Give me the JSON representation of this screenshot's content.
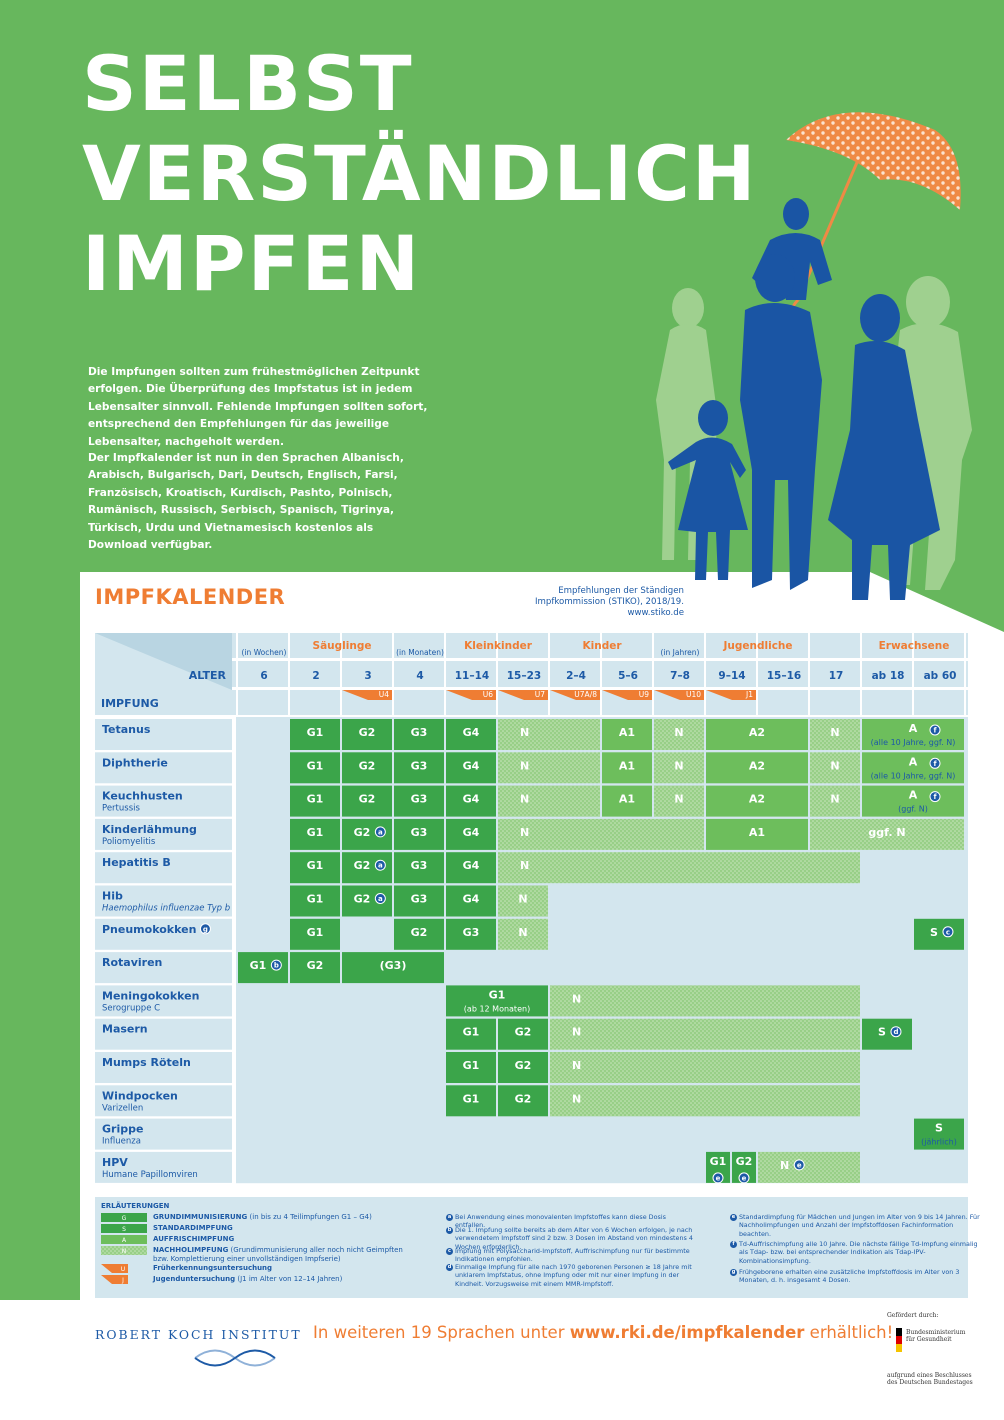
{
  "header": {
    "title": [
      "SELBST",
      "VERSTÄNDLICH",
      "IMPFEN"
    ],
    "intro": [
      "Die Impfungen sollten zum frühestmöglichen Zeitpunkt erfolgen. Die Überprüfung des Impfstatus ist in jedem Lebensalter sinnvoll. Fehlende Impfungen sollten sofort, entsprechend den Empfehlungen für das jeweilige Lebensalter, nachgeholt werden.",
      "Der Impfkalender ist nun in den Sprachen Albanisch, Arabisch, Bulgarisch, Dari, Deutsch, Englisch, Farsi, Französisch, Kroatisch, Kurdisch, Pashto, Polnisch, Rumänisch, Russisch, Serbisch, Spanisch, Tigrinya, Türkisch, Urdu und Vietnamesisch kostenlos als Download verfügbar."
    ]
  },
  "calendar": {
    "title": "IMPFKALENDER",
    "source": [
      "Empfehlungen der Ständigen",
      "Impfkommission (STIKO), 2018/19.",
      "www.stiko.de"
    ],
    "age_label": "ALTER",
    "vaccine_label": "IMPFUNG",
    "groups": [
      {
        "label": "Säuglinge",
        "col": 1,
        "span": 2
      },
      {
        "label": "Kleinkinder",
        "col": 4,
        "span": 2
      },
      {
        "label": "Kinder",
        "col": 6,
        "span": 2
      },
      {
        "label": "Jugendliche",
        "col": 9,
        "span": 2
      },
      {
        "label": "Erwachsene",
        "col": 12,
        "span": 2
      }
    ],
    "units": [
      {
        "label": "(in Wochen)",
        "col": 0
      },
      {
        "label": "(in Monaten)",
        "col": 3
      },
      {
        "label": "(in Jahren)",
        "col": 8
      }
    ],
    "ages": [
      "6",
      "2",
      "3",
      "4",
      "11–14",
      "15–23",
      "2–4",
      "5–6",
      "7–8",
      "9–14",
      "15–16",
      "17",
      "ab 18",
      "ab 60"
    ],
    "exams": [
      {
        "label": "U4",
        "col": 2
      },
      {
        "label": "U6",
        "col": 4
      },
      {
        "label": "U7",
        "col": 5
      },
      {
        "label": "U7A/8",
        "col": 6
      },
      {
        "label": "U9",
        "col": 7
      },
      {
        "label": "U10",
        "col": 8
      },
      {
        "label": "J1",
        "col": 9
      }
    ],
    "rows": [
      {
        "name": "Tetanus",
        "cells": [
          {
            "col": 1,
            "span": 1,
            "kind": "G",
            "label": "G1"
          },
          {
            "col": 2,
            "span": 1,
            "kind": "G",
            "label": "G2"
          },
          {
            "col": 3,
            "span": 1,
            "kind": "G",
            "label": "G3"
          },
          {
            "col": 4,
            "span": 1,
            "kind": "G",
            "label": "G4"
          },
          {
            "col": 5,
            "span": 2,
            "kind": "N",
            "label": "N"
          },
          {
            "col": 7,
            "span": 1,
            "kind": "A",
            "label": "A1"
          },
          {
            "col": 8,
            "span": 1,
            "kind": "N",
            "label": "N"
          },
          {
            "col": 9,
            "span": 2,
            "kind": "A",
            "label": "A2"
          },
          {
            "col": 11,
            "span": 1,
            "kind": "N",
            "label": "N"
          },
          {
            "col": 12,
            "span": 2,
            "kind": "A",
            "label": "A",
            "note": "f",
            "sub": "(alle 10 Jahre, ggf. N)"
          }
        ]
      },
      {
        "name": "Diphtherie",
        "cells": [
          {
            "col": 1,
            "span": 1,
            "kind": "G",
            "label": "G1"
          },
          {
            "col": 2,
            "span": 1,
            "kind": "G",
            "label": "G2"
          },
          {
            "col": 3,
            "span": 1,
            "kind": "G",
            "label": "G3"
          },
          {
            "col": 4,
            "span": 1,
            "kind": "G",
            "label": "G4"
          },
          {
            "col": 5,
            "span": 2,
            "kind": "N",
            "label": "N"
          },
          {
            "col": 7,
            "span": 1,
            "kind": "A",
            "label": "A1"
          },
          {
            "col": 8,
            "span": 1,
            "kind": "N",
            "label": "N"
          },
          {
            "col": 9,
            "span": 2,
            "kind": "A",
            "label": "A2"
          },
          {
            "col": 11,
            "span": 1,
            "kind": "N",
            "label": "N"
          },
          {
            "col": 12,
            "span": 2,
            "kind": "A",
            "label": "A",
            "note": "f",
            "sub": "(alle 10 Jahre, ggf. N)"
          }
        ]
      },
      {
        "name": "Keuchhusten",
        "subtitle": "Pertussis",
        "cells": [
          {
            "col": 1,
            "span": 1,
            "kind": "G",
            "label": "G1"
          },
          {
            "col": 2,
            "span": 1,
            "kind": "G",
            "label": "G2"
          },
          {
            "col": 3,
            "span": 1,
            "kind": "G",
            "label": "G3"
          },
          {
            "col": 4,
            "span": 1,
            "kind": "G",
            "label": "G4"
          },
          {
            "col": 5,
            "span": 2,
            "kind": "N",
            "label": "N"
          },
          {
            "col": 7,
            "span": 1,
            "kind": "A",
            "label": "A1"
          },
          {
            "col": 8,
            "span": 1,
            "kind": "N",
            "label": "N"
          },
          {
            "col": 9,
            "span": 2,
            "kind": "A",
            "label": "A2"
          },
          {
            "col": 11,
            "span": 1,
            "kind": "N",
            "label": "N"
          },
          {
            "col": 12,
            "span": 2,
            "kind": "A",
            "label": "A",
            "note": "f",
            "sub": "(ggf. N)"
          }
        ]
      },
      {
        "name": "Kinderlähmung",
        "subtitle": "Poliomyelitis",
        "cells": [
          {
            "col": 1,
            "span": 1,
            "kind": "G",
            "label": "G1"
          },
          {
            "col": 2,
            "span": 1,
            "kind": "G",
            "label": "G2",
            "note": "a"
          },
          {
            "col": 3,
            "span": 1,
            "kind": "G",
            "label": "G3"
          },
          {
            "col": 4,
            "span": 1,
            "kind": "G",
            "label": "G4"
          },
          {
            "col": 5,
            "span": 4,
            "kind": "N",
            "label": "N"
          },
          {
            "col": 9,
            "span": 2,
            "kind": "A",
            "label": "A1"
          },
          {
            "col": 11,
            "span": 3,
            "kind": "N",
            "label": "ggf. N"
          }
        ]
      },
      {
        "name": "Hepatitis B",
        "cells": [
          {
            "col": 1,
            "span": 1,
            "kind": "G",
            "label": "G1"
          },
          {
            "col": 2,
            "span": 1,
            "kind": "G",
            "label": "G2",
            "note": "a"
          },
          {
            "col": 3,
            "span": 1,
            "kind": "G",
            "label": "G3"
          },
          {
            "col": 4,
            "span": 1,
            "kind": "G",
            "label": "G4"
          },
          {
            "col": 5,
            "span": 7,
            "kind": "N",
            "label": "N"
          }
        ]
      },
      {
        "name": "Hib",
        "subtitle": "Haemophilus influenzae Typ b",
        "cells": [
          {
            "col": 1,
            "span": 1,
            "kind": "G",
            "label": "G1"
          },
          {
            "col": 2,
            "span": 1,
            "kind": "G",
            "label": "G2",
            "note": "a"
          },
          {
            "col": 3,
            "span": 1,
            "kind": "G",
            "label": "G3"
          },
          {
            "col": 4,
            "span": 1,
            "kind": "G",
            "label": "G4"
          },
          {
            "col": 5,
            "span": 1,
            "kind": "N",
            "label": "N"
          }
        ]
      },
      {
        "name": "Pneumokokken",
        "note": "g",
        "cells": [
          {
            "col": 1,
            "span": 1,
            "kind": "G",
            "label": "G1"
          },
          {
            "col": 3,
            "span": 1,
            "kind": "G",
            "label": "G2"
          },
          {
            "col": 4,
            "span": 1,
            "kind": "G",
            "label": "G3"
          },
          {
            "col": 5,
            "span": 1,
            "kind": "N",
            "label": "N"
          },
          {
            "col": 13,
            "span": 1,
            "kind": "S",
            "label": "S",
            "note": "c"
          }
        ]
      },
      {
        "name": "Rotaviren",
        "cells": [
          {
            "col": 0,
            "span": 1,
            "kind": "G",
            "label": "G1",
            "note": "b"
          },
          {
            "col": 1,
            "span": 1,
            "kind": "G",
            "label": "G2"
          },
          {
            "col": 2,
            "span": 2,
            "kind": "G",
            "label": "(G3)"
          }
        ]
      },
      {
        "name": "Meningokokken",
        "subtitle": "Serogruppe C",
        "cells": [
          {
            "col": 4,
            "span": 2,
            "kind": "G",
            "label": "G1",
            "sub": "(ab 12 Monaten)"
          },
          {
            "col": 6,
            "span": 6,
            "kind": "N",
            "label": "N"
          }
        ]
      },
      {
        "name": "Masern",
        "cells": [
          {
            "col": 4,
            "span": 1,
            "kind": "G",
            "label": "G1"
          },
          {
            "col": 5,
            "span": 1,
            "kind": "G",
            "label": "G2"
          },
          {
            "col": 6,
            "span": 6,
            "kind": "N",
            "label": "N"
          },
          {
            "col": 12,
            "span": 1,
            "kind": "S",
            "label": "S",
            "note": "d"
          }
        ]
      },
      {
        "name": "Mumps  Röteln",
        "cells": [
          {
            "col": 4,
            "span": 1,
            "kind": "G",
            "label": "G1"
          },
          {
            "col": 5,
            "span": 1,
            "kind": "G",
            "label": "G2"
          },
          {
            "col": 6,
            "span": 6,
            "kind": "N",
            "label": "N"
          }
        ]
      },
      {
        "name": "Windpocken",
        "subtitle": "Varizellen",
        "cells": [
          {
            "col": 4,
            "span": 1,
            "kind": "G",
            "label": "G1"
          },
          {
            "col": 5,
            "span": 1,
            "kind": "G",
            "label": "G2"
          },
          {
            "col": 6,
            "span": 6,
            "kind": "N",
            "label": "N"
          }
        ]
      },
      {
        "name": "Grippe",
        "subtitle": "Influenza",
        "cells": [
          {
            "col": 13,
            "span": 1,
            "kind": "S",
            "label": "S",
            "sub": "(jährlich)"
          }
        ]
      },
      {
        "name": "HPV",
        "subtitle": "Humane Papillomviren",
        "cells": [
          {
            "col": 9,
            "span": 0.5,
            "kind": "G",
            "label": "G1",
            "note": "e"
          },
          {
            "col": 9.5,
            "span": 0.5,
            "kind": "G",
            "label": "G2",
            "note": "e"
          },
          {
            "col": 10,
            "span": 2,
            "kind": "N",
            "label": "N",
            "note": "e"
          }
        ]
      }
    ]
  },
  "legend": {
    "title": "ERLÄUTERUNGEN",
    "items": [
      {
        "code": "G",
        "kind": "G",
        "label": "GRUNDIMMUNISIERUNG",
        "text": "(in bis zu 4 Teilimpfungen G1 – G4)"
      },
      {
        "code": "S",
        "kind": "S",
        "label": "STANDARDIMPFUNG"
      },
      {
        "code": "A",
        "kind": "A",
        "label": "AUFFRISCHIMPFUNG"
      },
      {
        "code": "N",
        "kind": "N",
        "label": "NACHHOLIMPFUNG",
        "text": "(Grundimmunisierung aller noch nicht Geimpften bzw. Komplettierung einer unvollständigen Impfserie)"
      }
    ],
    "exam_codes": [
      "U",
      "J"
    ],
    "exam_label": "Früherkennungsuntersuchung",
    "youth_label": "Jugenduntersuchung",
    "youth_text": "(J1 im Alter von 12–14 Jahren)"
  },
  "footnotes": [
    {
      "letter": "a",
      "text": "Bei Anwendung eines monovalenten Impfstoffes kann diese Dosis entfallen."
    },
    {
      "letter": "b",
      "text": "Die 1. Impfung sollte bereits ab dem Alter von 6 Wochen erfolgen, je nach verwendetem Impfstoff sind 2 bzw. 3 Dosen im Abstand von mindestens 4 Wochen erforderlich."
    },
    {
      "letter": "c",
      "text": "Impfung mit Polysaccharid-Impfstoff, Auffrischimpfung nur für bestimmte Indikationen empfohlen."
    },
    {
      "letter": "d",
      "text": "Einmalige Impfung für alle nach 1970 geborenen Personen ≥ 18 Jahre mit unklarem Impfstatus, ohne Impfung oder mit nur einer Impfung in der Kindheit. Vorzugsweise mit einem MMR-Impfstoff."
    },
    {
      "letter": "e",
      "text": "Standardimpfung für Mädchen und Jungen im Alter von 9 bis 14 Jahren. Für Nachholimpfungen und Anzahl der Impfstoffdosen Fachinformation beachten."
    },
    {
      "letter": "f",
      "text": "Td-Auffrischimpfung alle 10 Jahre. Die nächste fällige Td-Impfung einmalig als Tdap- bzw. bei entsprechender Indikation als Tdap-IPV-Kombinationsimpfung."
    },
    {
      "letter": "g",
      "text": "Frühgeborene erhalten eine zusätzliche Impfstoffdosis im Alter von 3 Monaten, d. h. insgesamt 4 Dosen."
    }
  ],
  "footer": {
    "institute": "ROBERT KOCH INSTITUT",
    "cta_before": "In weiteren 19 Sprachen unter",
    "cta_url": "www.rki.de/impfkalender",
    "cta_after": "erhältlich!",
    "sponsor_label": "Gefördert durch:",
    "ministry": "Bundesministerium für Gesundheit",
    "resolution": "aufgrund eines Beschlusses des Deutschen Bundestages"
  }
}
